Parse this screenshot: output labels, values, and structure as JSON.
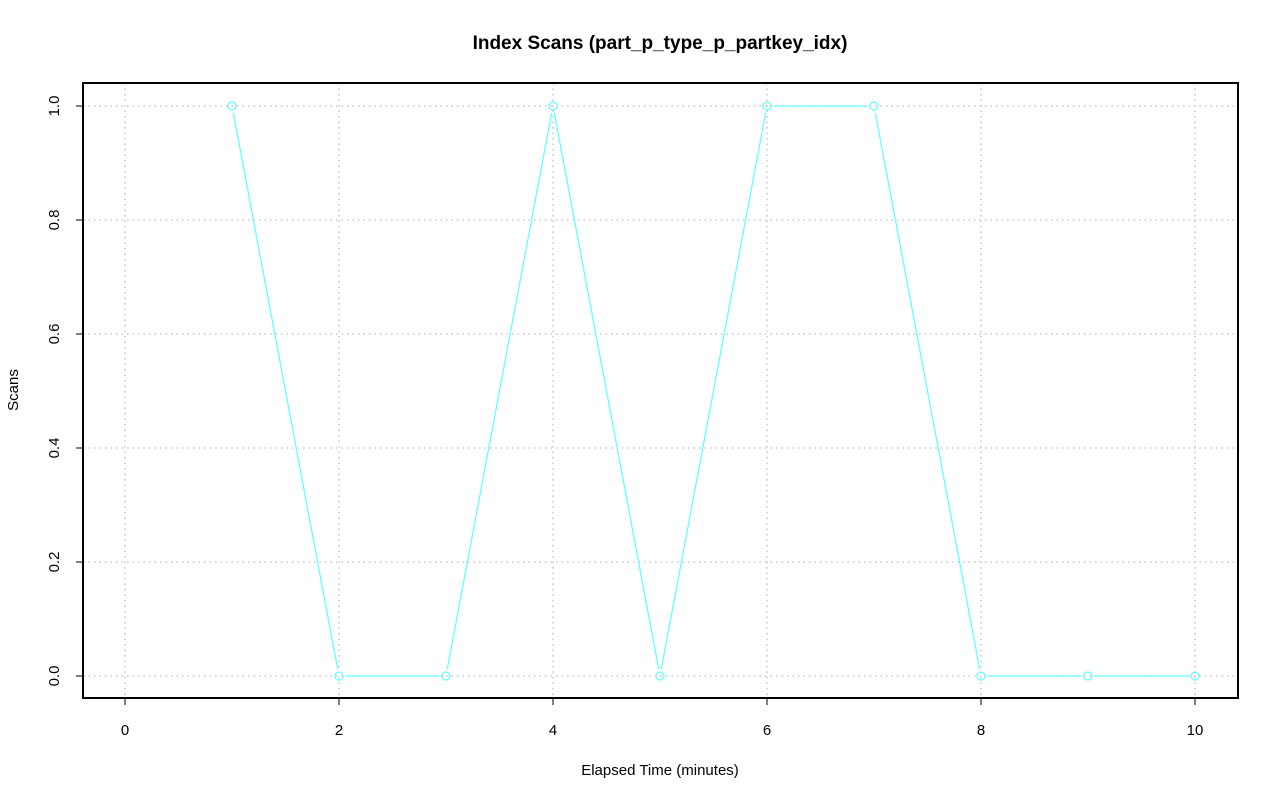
{
  "chart_data": {
    "type": "line",
    "title": "Index Scans (part_p_type_p_partkey_idx)",
    "xlabel": "Elapsed Time (minutes)",
    "ylabel": "Scans",
    "xlim": [
      0,
      10
    ],
    "ylim": [
      0,
      1
    ],
    "x_ticks": [
      "0",
      "2",
      "4",
      "6",
      "8",
      "10"
    ],
    "y_ticks": [
      "0.0",
      "0.2",
      "0.4",
      "0.6",
      "0.8",
      "1.0"
    ],
    "grid": true,
    "series": [
      {
        "color": "#66ffff",
        "x": [
          1,
          2,
          3,
          4,
          5,
          6,
          7,
          8,
          9,
          10
        ],
        "y": [
          1,
          0,
          0,
          1,
          0,
          1,
          1,
          0,
          0,
          0
        ]
      }
    ]
  }
}
